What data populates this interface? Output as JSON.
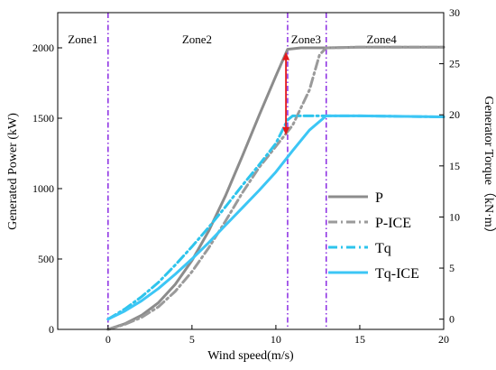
{
  "chart_data": {
    "type": "line",
    "xlabel": "Wind speed(m/s)",
    "ylabel_left": "Generated Power (kW)",
    "ylabel_right": "Generator Torque（kN·m）",
    "xlim": [
      -3,
      20
    ],
    "ylim_left": [
      0,
      2250
    ],
    "ylim_right": [
      -1,
      30
    ],
    "x_ticks": [
      0,
      5,
      10,
      15,
      20
    ],
    "y_ticks_left": [
      0,
      500,
      1000,
      1500,
      2000
    ],
    "y_ticks_right": [
      0,
      5,
      10,
      15,
      20,
      25,
      30
    ],
    "grid": false,
    "legend_position": "center-right",
    "zones": [
      {
        "label": "Zone1",
        "label_x": -1.5
      },
      {
        "label": "Zone2",
        "label_x": 5.3
      },
      {
        "label": "Zone3",
        "label_x": 11.8
      },
      {
        "label": "Zone4",
        "label_x": 16.3
      }
    ],
    "zone_boundaries": [
      0,
      10.7,
      13
    ],
    "annotation_arrow": {
      "x": 10.6,
      "y_from": 1380,
      "y_to": 1970,
      "color": "#e31a1c"
    },
    "series": [
      {
        "name": "P",
        "axis": "left",
        "color": "#8c8c8c",
        "style": "solid",
        "x": [
          0,
          1,
          2,
          3,
          4,
          5,
          6,
          7,
          8,
          9,
          10,
          10.7,
          11.5,
          13,
          15,
          20
        ],
        "y": [
          0,
          40,
          100,
          190,
          320,
          490,
          700,
          950,
          1230,
          1520,
          1800,
          1990,
          2000,
          2000,
          2005,
          2005
        ]
      },
      {
        "name": "P-ICE",
        "axis": "left",
        "color": "#9a9a9a",
        "style": "dashdot",
        "x": [
          0,
          1,
          2,
          3,
          4,
          5,
          6,
          7,
          8,
          9,
          10,
          11,
          12,
          12.6,
          13,
          15,
          20
        ],
        "y": [
          0,
          35,
          85,
          160,
          270,
          410,
          580,
          770,
          970,
          1150,
          1300,
          1450,
          1700,
          1950,
          2000,
          2005,
          2005
        ]
      },
      {
        "name": "Tq",
        "axis": "right",
        "color": "#2ec4ec",
        "style": "dashdot",
        "x": [
          0,
          1,
          2,
          3,
          4,
          5,
          6,
          7,
          8,
          9,
          10,
          10.7,
          11,
          13,
          15,
          20
        ],
        "y": [
          0,
          1.0,
          2.2,
          3.6,
          5.3,
          7.1,
          9.0,
          11.0,
          13.1,
          15.1,
          17.2,
          19.5,
          19.9,
          19.9,
          19.9,
          19.8
        ]
      },
      {
        "name": "Tq-ICE",
        "axis": "right",
        "color": "#3cc6f5",
        "style": "solid",
        "x": [
          0,
          1,
          2,
          3,
          4,
          5,
          6,
          7,
          8,
          9,
          10,
          11,
          12,
          13,
          15,
          20
        ],
        "y": [
          0,
          0.8,
          1.8,
          3.0,
          4.4,
          5.9,
          7.5,
          9.2,
          10.9,
          12.6,
          14.4,
          16.5,
          18.5,
          19.9,
          19.9,
          19.8
        ]
      }
    ]
  }
}
